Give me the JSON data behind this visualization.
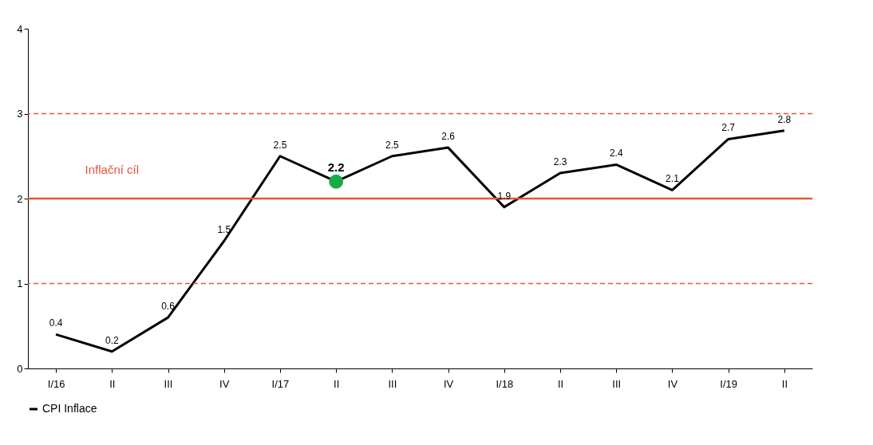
{
  "chart_data": {
    "type": "line",
    "categories": [
      "I/16",
      "II",
      "III",
      "IV",
      "I/17",
      "II",
      "III",
      "IV",
      "I/18",
      "II",
      "III",
      "IV",
      "I/19",
      "II"
    ],
    "series": [
      {
        "name": "CPI Inflace",
        "color": "#000000",
        "values": [
          0.4,
          0.2,
          0.6,
          1.5,
          2.5,
          2.2,
          2.5,
          2.6,
          1.9,
          2.3,
          2.4,
          2.1,
          2.7,
          2.8
        ],
        "value_labels": [
          "0.4",
          "0.2",
          "0.6",
          "1.5",
          "2.5",
          "2.2",
          "2.5",
          "2.6",
          "1.9",
          "2.3",
          "2.4",
          "2.1",
          "2.7",
          "2.8"
        ]
      },
      {
        "type": "scatter",
        "marker": "circle",
        "color": "#1aaa4a",
        "values": [
          null,
          null,
          null,
          null,
          null,
          2.2,
          null,
          null,
          null,
          null,
          null,
          null,
          null,
          null
        ]
      }
    ],
    "ylim": [
      0,
      4
    ],
    "yticks": [
      0,
      1,
      2,
      3,
      4
    ],
    "grid": false,
    "legend": "bottom",
    "ref_lines": [
      {
        "axis": "y",
        "value": 2,
        "label": "Inflační cíl",
        "color": "#e8553a",
        "line_style": "solid"
      },
      {
        "axis": "y",
        "value": 1,
        "color": "#e8553a",
        "line_style": "dashed"
      },
      {
        "axis": "y",
        "value": 3,
        "color": "#e8553a",
        "line_style": "dashed"
      }
    ]
  }
}
